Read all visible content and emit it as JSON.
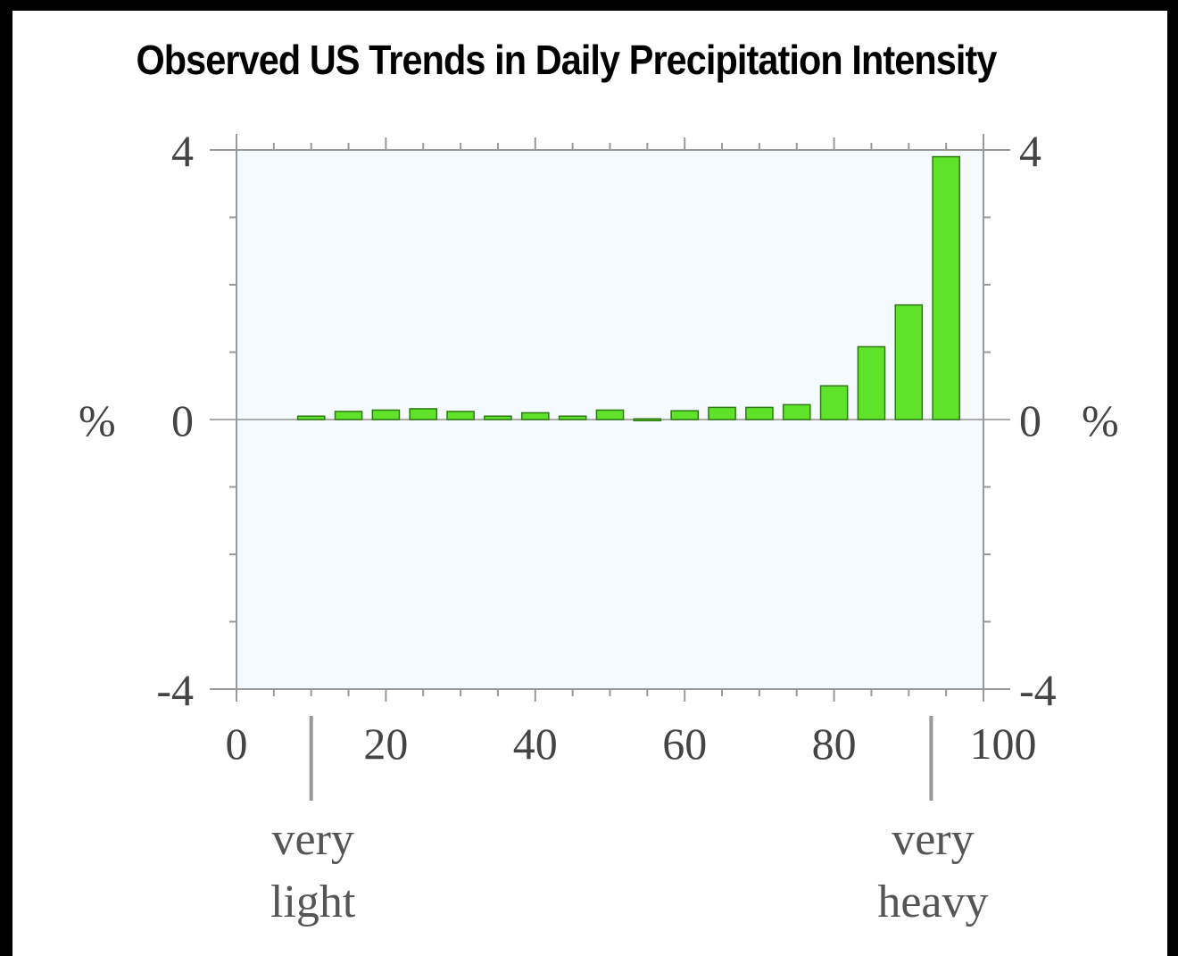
{
  "chart_data": {
    "type": "bar",
    "title": "Observed US Trends in Daily Precipitation Intensity",
    "x": [
      10,
      15,
      20,
      25,
      30,
      35,
      40,
      45,
      50,
      55,
      60,
      65,
      70,
      75,
      80,
      85,
      90,
      95
    ],
    "values": [
      0.05,
      0.12,
      0.14,
      0.16,
      0.12,
      0.05,
      0.1,
      0.05,
      0.14,
      0.01,
      0.13,
      0.18,
      0.18,
      0.22,
      0.5,
      1.08,
      1.7,
      3.9
    ],
    "xlim": [
      0,
      100
    ],
    "ylim": [
      -4,
      4
    ],
    "x_ticks": [
      "0",
      "20",
      "40",
      "60",
      "80",
      "100"
    ],
    "y_ticks_left": [
      "4",
      "0",
      "-4"
    ],
    "y_ticks_right": [
      "4",
      "0",
      "-4"
    ],
    "y_unit_left": "%",
    "y_unit_right": "%",
    "markers": [
      {
        "x": 10,
        "lines": [
          "very",
          "light"
        ]
      },
      {
        "x": 93,
        "lines": [
          "very",
          "heavy"
        ]
      }
    ],
    "colors": {
      "bar": "#5ee22a",
      "bar_edge": "#2f7a12",
      "plot_bg": "#f4fafd"
    }
  }
}
